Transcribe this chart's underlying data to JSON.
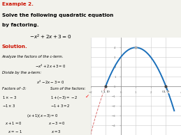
{
  "curve_color": "#1a6fba",
  "dashed_color": "#d05050",
  "grid_color": "#cccccc",
  "axis_color": "#999999",
  "xlim": [
    -2,
    4
  ],
  "ylim": [
    -5,
    5
  ],
  "x_ticks": [
    -2,
    -1,
    0,
    1,
    2,
    3,
    4
  ],
  "y_ticks": [
    -4,
    -3,
    -2,
    -1,
    0,
    1,
    2,
    3,
    4
  ],
  "roots": [
    -1,
    3
  ],
  "vertex": [
    1,
    4
  ],
  "label_roots": [
    "(-1, 0)",
    "(3, 0)"
  ],
  "background_color": "#f2f2ec",
  "graph_bg": "#ffffff",
  "red_color": "#cc1100",
  "black_color": "#111111",
  "gray_color": "#777777"
}
